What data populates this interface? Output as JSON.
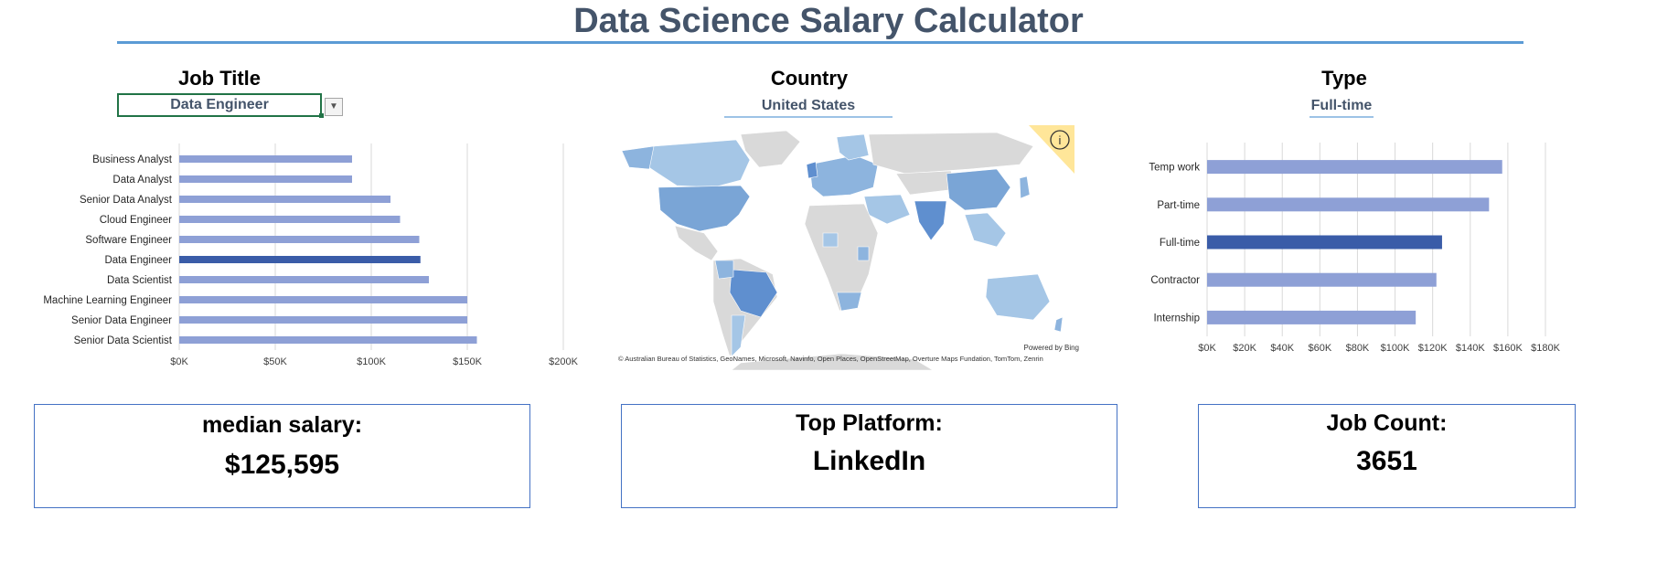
{
  "header": {
    "title": "Data Science Salary Calculator"
  },
  "job_title": {
    "heading": "Job Title",
    "selected": "Data Engineer"
  },
  "country": {
    "heading": "Country",
    "selected": "United States"
  },
  "type": {
    "heading": "Type",
    "selected": "Full-time"
  },
  "map": {
    "powered_by": "Powered by Bing",
    "attribution": "© Australian Bureau of Statistics, GeoNames, Microsoft, Navinfo, Open Places, OpenStreetMap, Overture Maps Fundation, TomTom, Zenrin",
    "info_icon": "info-icon"
  },
  "cards": {
    "median": {
      "label": "median salary:",
      "value": "$125,595"
    },
    "platform": {
      "label": "Top Platform:",
      "value": "LinkedIn"
    },
    "count": {
      "label": "Job Count:",
      "value": "3651"
    }
  },
  "colors": {
    "bar": "#8ea0d6",
    "bar_highlight": "#3a5ca8",
    "title": "#44546a",
    "accent": "#5b9bd5"
  },
  "chart_data": [
    {
      "type": "bar",
      "orientation": "horizontal",
      "categories": [
        "Business Analyst",
        "Data Analyst",
        "Senior Data Analyst",
        "Cloud Engineer",
        "Software Engineer",
        "Data Engineer",
        "Data Scientist",
        "Machine Learning Engineer",
        "Senior Data Engineer",
        "Senior Data Scientist"
      ],
      "values": [
        90000,
        90000,
        110000,
        115000,
        125000,
        125595,
        130000,
        150000,
        150000,
        155000
      ],
      "highlight": "Data Engineer",
      "xlim": [
        0,
        200000
      ],
      "xticks": [
        "$0K",
        "$50K",
        "$100K",
        "$150K",
        "$200K"
      ],
      "grid": true
    },
    {
      "type": "bar",
      "orientation": "horizontal",
      "categories": [
        "Temp work",
        "Part-time",
        "Full-time",
        "Contractor",
        "Internship"
      ],
      "values": [
        157000,
        150000,
        125000,
        122000,
        111000
      ],
      "highlight": "Full-time",
      "xlim": [
        0,
        180000
      ],
      "xticks": [
        "$0K",
        "$20K",
        "$40K",
        "$60K",
        "$80K",
        "$100K",
        "$120K",
        "$140K",
        "$160K",
        "$180K"
      ],
      "grid": true
    }
  ]
}
